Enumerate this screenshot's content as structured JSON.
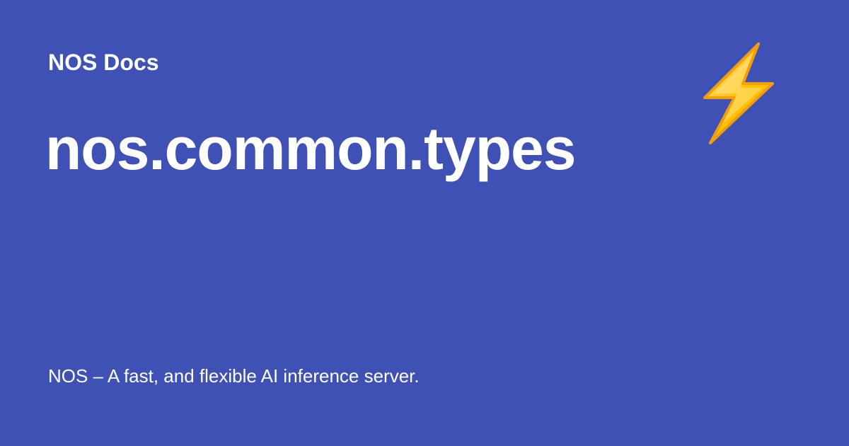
{
  "site": {
    "name": "NOS Docs"
  },
  "page": {
    "title": "nos.common.types",
    "description": "NOS – A fast, and flexible AI inference server."
  },
  "logo": {
    "icon": "lightning-bolt-icon"
  },
  "colors": {
    "background": "#3f51b5",
    "text": "#ffffff",
    "bolt_fill": "#ffc107",
    "bolt_fill_top": "#ffd54f",
    "bolt_outline": "#f29f05"
  }
}
